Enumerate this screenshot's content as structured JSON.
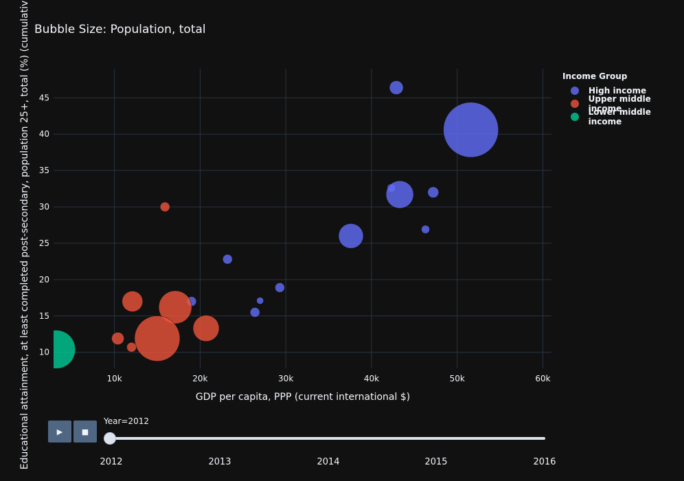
{
  "chart_data": {
    "type": "scatter",
    "title": "Bubble Size: Population, total",
    "xlabel": "GDP per capita, PPP (current international $)",
    "ylabel": "Educational attainment, at least completed post-secondary, population 25+, total (%) (cumulative)",
    "xlim": [
      2900,
      61000
    ],
    "ylim": [
      7.8,
      49
    ],
    "x_ticks": [
      10000,
      20000,
      30000,
      40000,
      50000,
      60000
    ],
    "x_tick_labels": [
      "10k",
      "20k",
      "30k",
      "40k",
      "50k",
      "60k"
    ],
    "y_ticks": [
      10,
      15,
      20,
      25,
      30,
      35,
      40,
      45
    ],
    "grid": true,
    "legend_title": "Income Group",
    "legend_placement": "top-right",
    "series": [
      {
        "name": "High income",
        "color": "#636efa",
        "points": [
          {
            "x": 42900,
            "y": 46.4,
            "size": 10
          },
          {
            "x": 51600,
            "y": 40.6,
            "size": 40
          },
          {
            "x": 42300,
            "y": 32.6,
            "size": 6
          },
          {
            "x": 43300,
            "y": 31.7,
            "size": 20
          },
          {
            "x": 47200,
            "y": 32.0,
            "size": 8
          },
          {
            "x": 46300,
            "y": 26.9,
            "size": 6
          },
          {
            "x": 37600,
            "y": 26.0,
            "size": 18
          },
          {
            "x": 23200,
            "y": 22.8,
            "size": 7
          },
          {
            "x": 29300,
            "y": 18.9,
            "size": 7
          },
          {
            "x": 19000,
            "y": 17.0,
            "size": 7
          },
          {
            "x": 27000,
            "y": 17.1,
            "size": 5
          },
          {
            "x": 26400,
            "y": 15.5,
            "size": 7
          }
        ]
      },
      {
        "name": "Upper middle income",
        "color": "#ef553b",
        "points": [
          {
            "x": 15900,
            "y": 30.0,
            "size": 7
          },
          {
            "x": 12100,
            "y": 17.0,
            "size": 15
          },
          {
            "x": 17100,
            "y": 16.2,
            "size": 24
          },
          {
            "x": 20700,
            "y": 13.3,
            "size": 19
          },
          {
            "x": 15000,
            "y": 11.9,
            "size": 33
          },
          {
            "x": 10400,
            "y": 11.9,
            "size": 9
          },
          {
            "x": 12000,
            "y": 10.7,
            "size": 7
          }
        ]
      },
      {
        "name": "Lower middle income",
        "color": "#00cc96",
        "points": [
          {
            "x": 3200,
            "y": 10.4,
            "size": 28
          }
        ]
      }
    ]
  },
  "controls": {
    "play_icon": "▶",
    "stop_icon": "■",
    "slider_label": "Year=2012",
    "slider_value": 2012,
    "slider_ticks": [
      "2012",
      "2013",
      "2014",
      "2015",
      "2016"
    ]
  }
}
